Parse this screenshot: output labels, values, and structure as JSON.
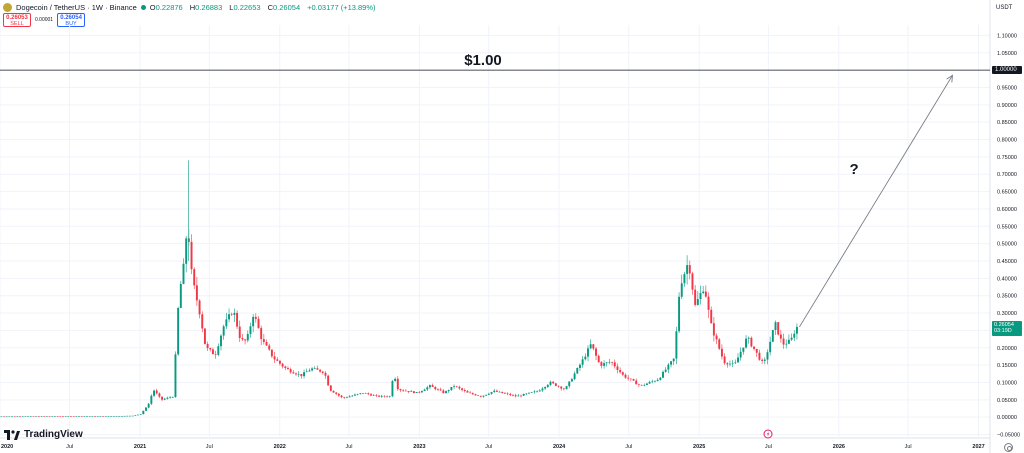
{
  "header": {
    "title": "Dogecoin / TetherUS · 1W · Binance",
    "ohlc": [
      {
        "label": "O",
        "value": "0.22876"
      },
      {
        "label": "H",
        "value": "0.26883"
      },
      {
        "label": "L",
        "value": "0.22653"
      },
      {
        "label": "C",
        "value": "0.26054"
      }
    ],
    "change": "+0.03177 (+13.89%)",
    "sell": {
      "price": "0.26053",
      "label": "SELL"
    },
    "buy": {
      "price": "0.26054",
      "label": "BUY"
    },
    "spread": "0.00001"
  },
  "currency": "USDT",
  "branding": "TradingView",
  "colors": {
    "up": "#089981",
    "down": "#f23645",
    "text": "#131722",
    "grid": "#f0f3fa",
    "logo": "#c2a633"
  },
  "icons": [
    "dogecoin-logo-icon",
    "market-status-icon",
    "tradingview-logo-icon",
    "flash-event-icon",
    "settings-icon"
  ],
  "last_price_tag": {
    "price": "0.26054",
    "countdown": "03:19D"
  },
  "chart_data": {
    "type": "candlestick",
    "interval": "1W",
    "x_range": [
      "2020-01-01",
      "2027-01-31"
    ],
    "y_range": [
      -0.06,
      1.13
    ],
    "y_ticks": [
      "1.10000",
      "1.05000",
      "1.00000",
      "0.95000",
      "0.90000",
      "0.85000",
      "0.80000",
      "0.75000",
      "0.70000",
      "0.65000",
      "0.60000",
      "0.55000",
      "0.50000",
      "0.45000",
      "0.40000",
      "0.35000",
      "0.30000",
      "0.25000",
      "0.20000",
      "0.15000",
      "0.10000",
      "0.05000",
      "0.00000",
      "−0.05000"
    ],
    "x_ticks": [
      {
        "label": "2020",
        "date": "2020-01-01"
      },
      {
        "label": "Jul",
        "date": "2020-07-01"
      },
      {
        "label": "2021",
        "date": "2021-01-01"
      },
      {
        "label": "Jul",
        "date": "2021-07-01"
      },
      {
        "label": "2022",
        "date": "2022-01-01"
      },
      {
        "label": "Jul",
        "date": "2022-07-01"
      },
      {
        "label": "2023",
        "date": "2023-01-01"
      },
      {
        "label": "Jul",
        "date": "2023-07-01"
      },
      {
        "label": "2024",
        "date": "2024-01-01"
      },
      {
        "label": "Jul",
        "date": "2024-07-01"
      },
      {
        "label": "2025",
        "date": "2025-01-01"
      },
      {
        "label": "Jul",
        "date": "2025-07-01"
      },
      {
        "label": "2026",
        "date": "2026-01-01"
      },
      {
        "label": "Jul",
        "date": "2026-07-01"
      },
      {
        "label": "2027",
        "date": "2027-01-01"
      }
    ],
    "price_path": [
      [
        "2020-01-01",
        0.002
      ],
      [
        "2020-06-01",
        0.0025
      ],
      [
        "2020-10-01",
        0.0026
      ],
      [
        "2020-12-15",
        0.004
      ],
      [
        "2021-01-07",
        0.009
      ],
      [
        "2021-01-28",
        0.04
      ],
      [
        "2021-02-08",
        0.08
      ],
      [
        "2021-03-01",
        0.05
      ],
      [
        "2021-04-01",
        0.06
      ],
      [
        "2021-04-16",
        0.35
      ],
      [
        "2021-05-01",
        0.45
      ],
      [
        "2021-05-08",
        0.57
      ],
      [
        "2021-05-20",
        0.4
      ],
      [
        "2021-06-10",
        0.3
      ],
      [
        "2021-06-25",
        0.2
      ],
      [
        "2021-07-20",
        0.18
      ],
      [
        "2021-08-10",
        0.26
      ],
      [
        "2021-09-05",
        0.31
      ],
      [
        "2021-09-25",
        0.22
      ],
      [
        "2021-10-10",
        0.22
      ],
      [
        "2021-10-28",
        0.3
      ],
      [
        "2021-11-20",
        0.22
      ],
      [
        "2021-12-20",
        0.17
      ],
      [
        "2022-01-20",
        0.14
      ],
      [
        "2022-03-01",
        0.12
      ],
      [
        "2022-03-28",
        0.14
      ],
      [
        "2022-05-01",
        0.13
      ],
      [
        "2022-05-15",
        0.08
      ],
      [
        "2022-06-18",
        0.055
      ],
      [
        "2022-08-10",
        0.07
      ],
      [
        "2022-09-15",
        0.06
      ],
      [
        "2022-10-20",
        0.06
      ],
      [
        "2022-10-29",
        0.13
      ],
      [
        "2022-11-10",
        0.08
      ],
      [
        "2022-12-30",
        0.07
      ],
      [
        "2023-02-01",
        0.09
      ],
      [
        "2023-03-10",
        0.07
      ],
      [
        "2023-04-05",
        0.09
      ],
      [
        "2023-05-10",
        0.07
      ],
      [
        "2023-06-15",
        0.06
      ],
      [
        "2023-07-18",
        0.075
      ],
      [
        "2023-09-15",
        0.06
      ],
      [
        "2023-11-10",
        0.075
      ],
      [
        "2023-12-12",
        0.1
      ],
      [
        "2024-01-20",
        0.08
      ],
      [
        "2024-03-04",
        0.16
      ],
      [
        "2024-03-28",
        0.21
      ],
      [
        "2024-04-20",
        0.15
      ],
      [
        "2024-05-20",
        0.16
      ],
      [
        "2024-06-20",
        0.12
      ],
      [
        "2024-08-05",
        0.09
      ],
      [
        "2024-09-20",
        0.11
      ],
      [
        "2024-11-01",
        0.17
      ],
      [
        "2024-11-15",
        0.38
      ],
      [
        "2024-12-08",
        0.45
      ],
      [
        "2024-12-25",
        0.32
      ],
      [
        "2025-01-18",
        0.38
      ],
      [
        "2025-02-03",
        0.27
      ],
      [
        "2025-03-10",
        0.16
      ],
      [
        "2025-04-07",
        0.15
      ],
      [
        "2025-05-10",
        0.23
      ],
      [
        "2025-06-22",
        0.15
      ],
      [
        "2025-07-22",
        0.27
      ],
      [
        "2025-08-10",
        0.21
      ],
      [
        "2025-09-01",
        0.22
      ],
      [
        "2025-09-15",
        0.26
      ]
    ],
    "annotations": [
      {
        "type": "horizontal_line",
        "y": 1.0,
        "label": "$1.00",
        "axis_label": "1.00000"
      },
      {
        "type": "arrow",
        "from": [
          "2025-09-20",
          0.26
        ],
        "to": [
          "2026-10-25",
          0.985
        ]
      },
      {
        "type": "text",
        "text": "?",
        "at": [
          "2026-02-10",
          0.7
        ]
      }
    ]
  }
}
